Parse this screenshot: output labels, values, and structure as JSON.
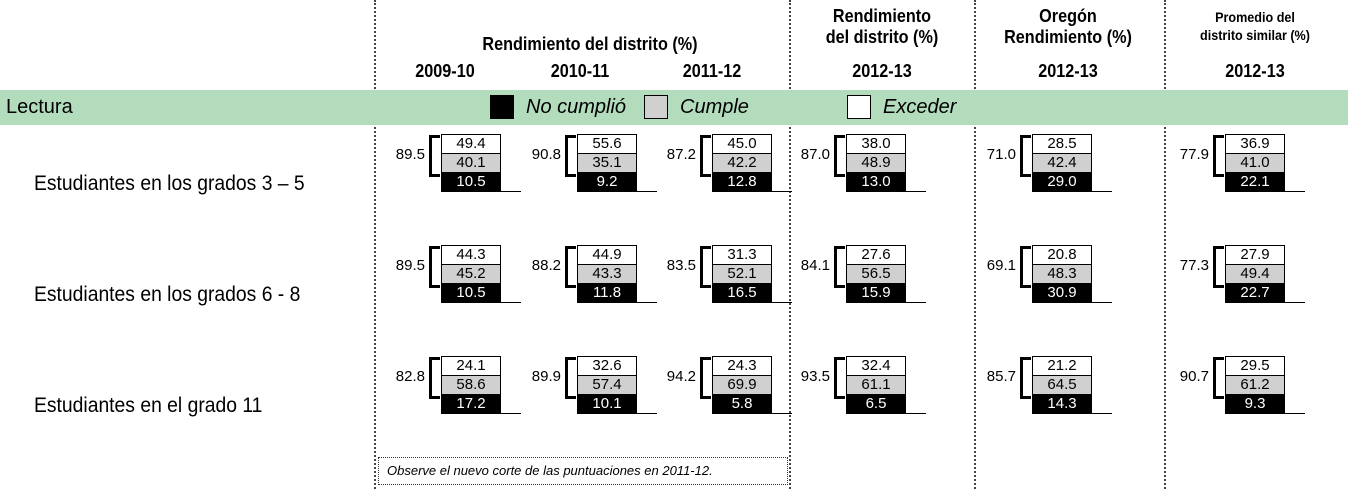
{
  "fragment": ")",
  "header": {
    "group_title": "Rendimiento del distrito (%)",
    "columns": [
      {
        "year": "2009-10"
      },
      {
        "year": "2010-11"
      },
      {
        "year": "2011-12"
      },
      {
        "title_lines": [
          "Rendimiento",
          "del distrito (%)"
        ],
        "year": "2012-13"
      },
      {
        "title_lines": [
          "Oregón",
          "Rendimiento (%)"
        ],
        "year": "2012-13"
      },
      {
        "title_lines": [
          "Promedio del",
          "distrito similar (%)"
        ],
        "year": "2012-13"
      }
    ]
  },
  "section": {
    "title": "Lectura",
    "legend": [
      "No cumplió",
      "Cumple",
      "Exceder"
    ]
  },
  "rows": [
    {
      "label": "Estudiantes en los grados 3 – 5",
      "cells": [
        {
          "total": "89.5",
          "exceeds": "49.4",
          "meets": "40.1",
          "not_met": "10.5"
        },
        {
          "total": "90.8",
          "exceeds": "55.6",
          "meets": "35.1",
          "not_met": "9.2"
        },
        {
          "total": "87.2",
          "exceeds": "45.0",
          "meets": "42.2",
          "not_met": "12.8"
        },
        {
          "total": "87.0",
          "exceeds": "38.0",
          "meets": "48.9",
          "not_met": "13.0"
        },
        {
          "total": "71.0",
          "exceeds": "28.5",
          "meets": "42.4",
          "not_met": "29.0"
        },
        {
          "total": "77.9",
          "exceeds": "36.9",
          "meets": "41.0",
          "not_met": "22.1"
        }
      ]
    },
    {
      "label": "Estudiantes en los grados 6 - 8",
      "cells": [
        {
          "total": "89.5",
          "exceeds": "44.3",
          "meets": "45.2",
          "not_met": "10.5"
        },
        {
          "total": "88.2",
          "exceeds": "44.9",
          "meets": "43.3",
          "not_met": "11.8"
        },
        {
          "total": "83.5",
          "exceeds": "31.3",
          "meets": "52.1",
          "not_met": "16.5"
        },
        {
          "total": "84.1",
          "exceeds": "27.6",
          "meets": "56.5",
          "not_met": "15.9"
        },
        {
          "total": "69.1",
          "exceeds": "20.8",
          "meets": "48.3",
          "not_met": "30.9"
        },
        {
          "total": "77.3",
          "exceeds": "27.9",
          "meets": "49.4",
          "not_met": "22.7"
        }
      ]
    },
    {
      "label": "Estudiantes en el grado 11",
      "cells": [
        {
          "total": "82.8",
          "exceeds": "24.1",
          "meets": "58.6",
          "not_met": "17.2"
        },
        {
          "total": "89.9",
          "exceeds": "32.6",
          "meets": "57.4",
          "not_met": "10.1"
        },
        {
          "total": "94.2",
          "exceeds": "24.3",
          "meets": "69.9",
          "not_met": "5.8"
        },
        {
          "total": "93.5",
          "exceeds": "32.4",
          "meets": "61.1",
          "not_met": "6.5"
        },
        {
          "total": "85.7",
          "exceeds": "21.2",
          "meets": "64.5",
          "not_met": "14.3"
        },
        {
          "total": "90.7",
          "exceeds": "29.5",
          "meets": "61.2",
          "not_met": "9.3"
        }
      ]
    }
  ],
  "footnote": "Observe el nuevo corte de las puntuaciones en 2011-12."
}
